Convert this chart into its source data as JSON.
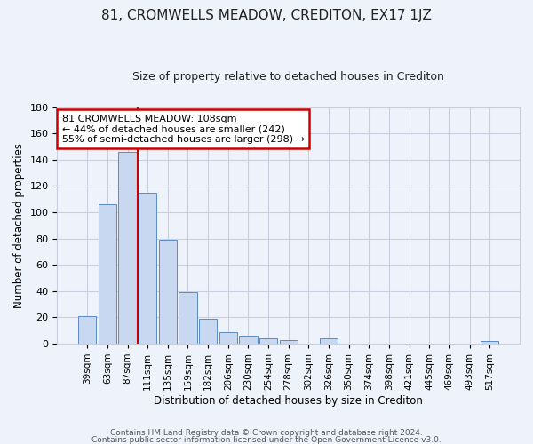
{
  "title": "81, CROMWELLS MEADOW, CREDITON, EX17 1JZ",
  "subtitle": "Size of property relative to detached houses in Crediton",
  "xlabel": "Distribution of detached houses by size in Crediton",
  "ylabel": "Number of detached properties",
  "bar_labels": [
    "39sqm",
    "63sqm",
    "87sqm",
    "111sqm",
    "135sqm",
    "159sqm",
    "182sqm",
    "206sqm",
    "230sqm",
    "254sqm",
    "278sqm",
    "302sqm",
    "326sqm",
    "350sqm",
    "374sqm",
    "398sqm",
    "421sqm",
    "445sqm",
    "469sqm",
    "493sqm",
    "517sqm"
  ],
  "bar_values": [
    21,
    106,
    146,
    115,
    79,
    39,
    19,
    9,
    6,
    4,
    3,
    0,
    4,
    0,
    0,
    0,
    0,
    0,
    0,
    0,
    2
  ],
  "bar_color": "#c8d8f0",
  "bar_edge_color": "#5a8ac6",
  "vline_x_index": 3,
  "vline_color": "#cc0000",
  "ylim": [
    0,
    180
  ],
  "yticks": [
    0,
    20,
    40,
    60,
    80,
    100,
    120,
    140,
    160,
    180
  ],
  "annotation_title": "81 CROMWELLS MEADOW: 108sqm",
  "annotation_line1": "← 44% of detached houses are smaller (242)",
  "annotation_line2": "55% of semi-detached houses are larger (298) →",
  "annotation_box_color": "#ffffff",
  "annotation_box_edge": "#cc0000",
  "footer_line1": "Contains HM Land Registry data © Crown copyright and database right 2024.",
  "footer_line2": "Contains public sector information licensed under the Open Government Licence v3.0.",
  "background_color": "#eef2fb",
  "plot_bg_color": "#eef2fb",
  "grid_color": "#c8d0e0"
}
